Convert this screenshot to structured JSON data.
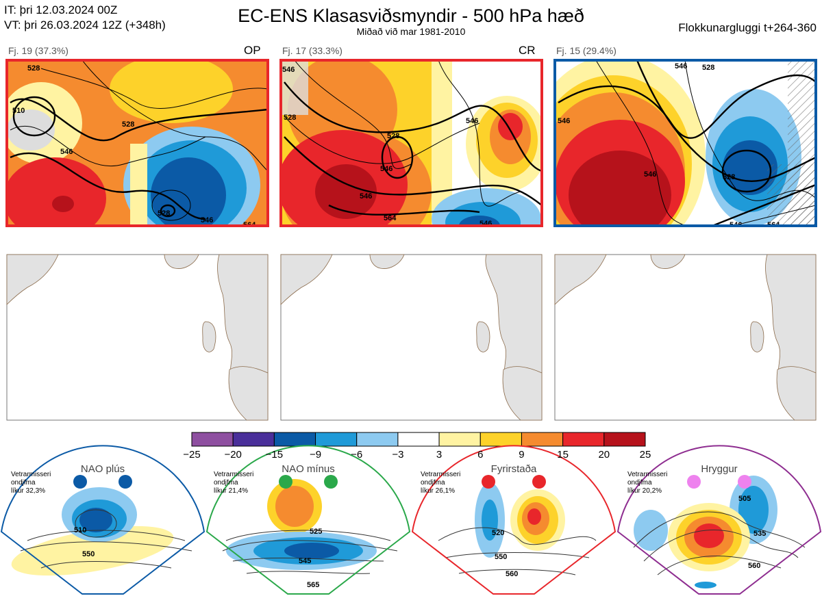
{
  "header": {
    "it_line": "IT: þri 12.03.2024 00Z",
    "vt_line": "VT: þri 26.03.2024 12Z  (+348h)",
    "title": "EC-ENS Klasasviðsmyndir - 500 hPa hæð",
    "subtitle": "Miðað við mar 1981-2010",
    "window": "Flokkunargluggi t+264-360"
  },
  "clusters": [
    {
      "label": "Fj. 19 (37.3%)",
      "tag": "OP",
      "border_color": "#e8262b",
      "contours": [
        "510",
        "528",
        "546",
        "528",
        "528",
        "546",
        "564"
      ]
    },
    {
      "label": "Fj. 17 (33.3%)",
      "tag": "CR",
      "border_color": "#e8262b",
      "contours": [
        "546",
        "528",
        "528",
        "546",
        "546",
        "564",
        "546",
        "546"
      ]
    },
    {
      "label": "Fj. 15 (29.4%)",
      "tag": "",
      "border_color": "#0b5aa6",
      "contours": [
        "546",
        "546",
        "528",
        "528",
        "546",
        "564",
        "546"
      ]
    }
  ],
  "colorbar": {
    "ticks": [
      "−25",
      "−20",
      "−15",
      "−9",
      "−6",
      "−3",
      "3",
      "6",
      "9",
      "15",
      "20",
      "25"
    ],
    "colors": [
      "#8e4fa0",
      "#4a2f9a",
      "#0b5aa6",
      "#1f9ad8",
      "#8dcaf0",
      "#ffffff",
      "#fff3a2",
      "#fdd22a",
      "#f58b2f",
      "#e8262b",
      "#b6121b"
    ]
  },
  "regimes": [
    {
      "title": "NAO plús",
      "note": [
        "Vetrarmisseri",
        "ondjfma",
        "líkur 32,3%"
      ],
      "color": "#0b5aa6",
      "dot_color": "#0b5aa6",
      "contours": [
        "510",
        "550"
      ]
    },
    {
      "title": "NAO mínus",
      "note": [
        "Vetrarmisseri",
        "ondjfma",
        "líkur 21,4%"
      ],
      "color": "#2aa84a",
      "dot_color": "#2aa84a",
      "contours": [
        "525",
        "545",
        "565"
      ]
    },
    {
      "title": "Fyrirstaða",
      "note": [
        "Vetrarmisseri",
        "ondjfma",
        "líkur 26,1%"
      ],
      "color": "#e8262b",
      "dot_color": "#e8262b",
      "contours": [
        "520",
        "550",
        "560"
      ]
    },
    {
      "title": "Hryggur",
      "note": [
        "Vetrarmisseri",
        "ondjfma",
        "líkur 20,2%"
      ],
      "color": "#8e2d90",
      "dot_color": "#ee82ee",
      "contours": [
        "505",
        "535",
        "560"
      ]
    }
  ]
}
